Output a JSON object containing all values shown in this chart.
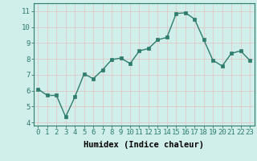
{
  "x": [
    0,
    1,
    2,
    3,
    4,
    5,
    6,
    7,
    8,
    9,
    10,
    11,
    12,
    13,
    14,
    15,
    16,
    17,
    18,
    19,
    20,
    21,
    22,
    23
  ],
  "y": [
    6.1,
    5.7,
    5.7,
    4.35,
    5.6,
    7.05,
    6.75,
    7.3,
    7.95,
    8.05,
    7.7,
    8.5,
    8.65,
    9.2,
    9.35,
    10.85,
    10.9,
    10.5,
    9.2,
    7.9,
    7.55,
    8.35,
    8.5,
    7.9
  ],
  "line_color": "#2e7d6e",
  "marker_color": "#2e7d6e",
  "bg_color": "#d0eeea",
  "grid_color": "#e0c8c8",
  "xlabel": "Humidex (Indice chaleur)",
  "ylabel": "",
  "xlim": [
    -0.5,
    23.5
  ],
  "ylim": [
    3.8,
    11.5
  ],
  "yticks": [
    4,
    5,
    6,
    7,
    8,
    9,
    10,
    11
  ],
  "xticks": [
    0,
    1,
    2,
    3,
    4,
    5,
    6,
    7,
    8,
    9,
    10,
    11,
    12,
    13,
    14,
    15,
    16,
    17,
    18,
    19,
    20,
    21,
    22,
    23
  ],
  "font_size": 6.5,
  "xlabel_fontsize": 7.5,
  "marker_size": 2.5,
  "line_width": 1.0
}
